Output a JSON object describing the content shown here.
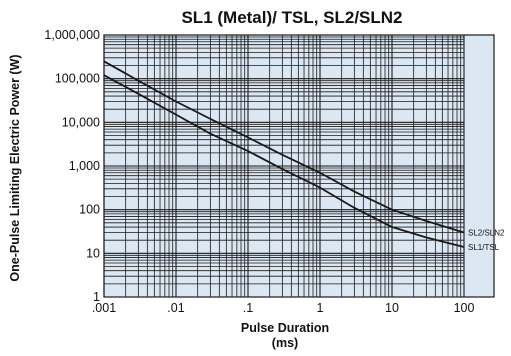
{
  "chart_data": {
    "type": "line",
    "title": "SL1 (Metal)/ TSL, SL2/SLN2",
    "xlabel_line1": "Pulse Duration",
    "xlabel_line2": "(ms)",
    "ylabel": "One-Pulse Limiting Electric Power (W)",
    "x_scale": "log",
    "y_scale": "log",
    "xlim": [
      0.001,
      100
    ],
    "ylim": [
      1,
      1000000
    ],
    "x_ticks": [
      0.001,
      0.01,
      0.1,
      1,
      10,
      100
    ],
    "x_tick_labels": [
      ".001",
      ".01",
      ".1",
      "1",
      "10",
      "100"
    ],
    "y_ticks": [
      1,
      10,
      100,
      1000,
      10000,
      100000,
      1000000
    ],
    "y_tick_labels": [
      "1",
      "10",
      "100",
      "1,000",
      "10,000",
      "100,000",
      "1,000,000"
    ],
    "grid": true,
    "colors": {
      "plot_background": "#dbe7f3",
      "grid": "#1a1a1a",
      "line": "#1a1a1a"
    },
    "series": [
      {
        "name": "SL2/SLN2",
        "x": [
          0.001,
          0.003,
          0.01,
          0.03,
          0.1,
          0.3,
          1,
          3,
          10,
          30,
          100
        ],
        "y": [
          250000,
          90000,
          30000,
          12000,
          4500,
          1800,
          700,
          260,
          100,
          55,
          30
        ]
      },
      {
        "name": "SL1/TSL",
        "x": [
          0.001,
          0.003,
          0.01,
          0.03,
          0.1,
          0.3,
          1,
          3,
          10,
          30,
          100
        ],
        "y": [
          120000,
          45000,
          15000,
          5500,
          2200,
          850,
          320,
          110,
          40,
          23,
          14
        ]
      }
    ]
  }
}
